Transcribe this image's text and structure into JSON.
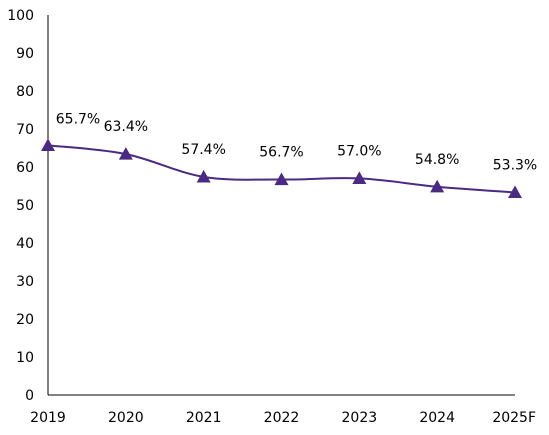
{
  "chart_data": {
    "type": "line",
    "categories": [
      "2019",
      "2020",
      "2021",
      "2022",
      "2023",
      "2024",
      "2025F"
    ],
    "series": [
      {
        "values": [
          65.7,
          63.4,
          57.4,
          56.7,
          57.0,
          54.8,
          53.3
        ],
        "data_labels": [
          "65.7%",
          "63.4%",
          "57.4%",
          "56.7%",
          "57.0%",
          "54.8%",
          "53.3%"
        ],
        "color": "#4a2a82",
        "marker": "triangle",
        "smooth": true
      }
    ],
    "yticks": [
      "0",
      "10",
      "20",
      "30",
      "40",
      "50",
      "60",
      "70",
      "80",
      "90",
      "100"
    ],
    "ylim": [
      0,
      100
    ],
    "grid": false,
    "legend": "none",
    "axis_color": "#000000"
  }
}
